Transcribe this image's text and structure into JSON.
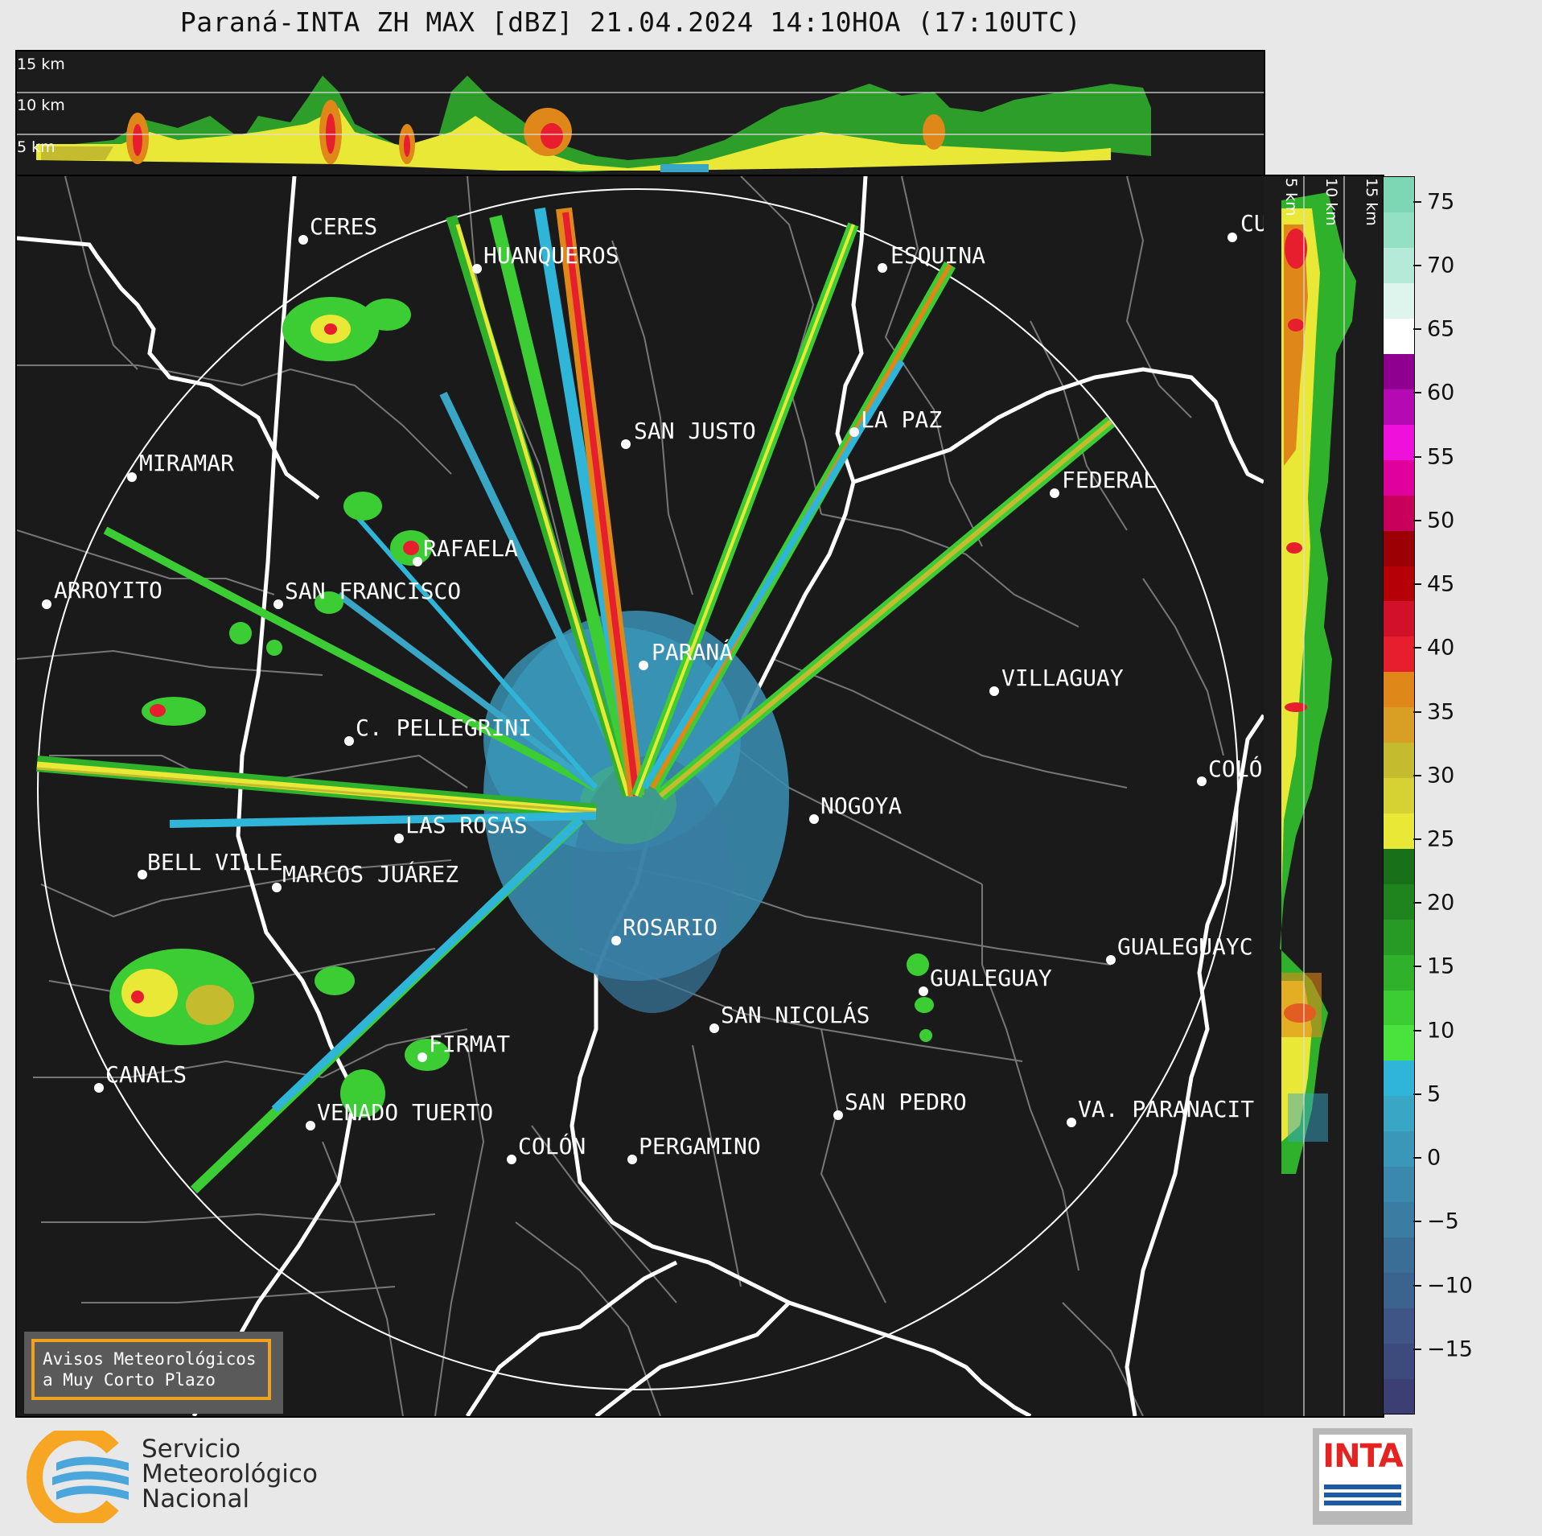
{
  "title": "Paraná-INTA ZH MAX [dBZ] 21.04.2024 14:10HOA (17:10UTC)",
  "top_panel": {
    "altitude_labels": [
      "15 km",
      "10 km",
      "5 km"
    ]
  },
  "side_panel": {
    "altitude_labels": [
      "5 km",
      "10 km",
      "15 km"
    ]
  },
  "cities": [
    {
      "name": "CERES"
    },
    {
      "name": "HUANQUEROS"
    },
    {
      "name": "ESQUINA"
    },
    {
      "name": "CU"
    },
    {
      "name": "SAN JUSTO"
    },
    {
      "name": "LA PAZ"
    },
    {
      "name": "MIRAMAR"
    },
    {
      "name": "FEDERAL"
    },
    {
      "name": "RAFAELA"
    },
    {
      "name": "ARROYITO"
    },
    {
      "name": "SAN FRANCISCO"
    },
    {
      "name": "PARANÁ"
    },
    {
      "name": "VILLAGUAY"
    },
    {
      "name": "C. PELLEGRINI"
    },
    {
      "name": "COLÓ"
    },
    {
      "name": "NOGOYA"
    },
    {
      "name": "LAS ROSAS"
    },
    {
      "name": "BELL VILLE"
    },
    {
      "name": "MARCOS JUÁREZ"
    },
    {
      "name": "ROSARIO"
    },
    {
      "name": "GUALEGUAYC"
    },
    {
      "name": "GUALEGUAY"
    },
    {
      "name": "SAN NICOLÁS"
    },
    {
      "name": "FIRMAT"
    },
    {
      "name": "CANALS"
    },
    {
      "name": "SAN PEDRO"
    },
    {
      "name": "VENADO TUERTO"
    },
    {
      "name": "VA. PARANACIT"
    },
    {
      "name": "COLÓN"
    },
    {
      "name": "PERGAMINO"
    }
  ],
  "colorbar": {
    "ticks": [
      "75",
      "70",
      "65",
      "60",
      "55",
      "50",
      "45",
      "40",
      "35",
      "30",
      "25",
      "20",
      "15",
      "10",
      "5",
      "0",
      "−5",
      "−10",
      "−15"
    ],
    "range_dbz": [
      -20,
      77
    ],
    "colors_low_to_high": [
      "#3b3f73",
      "#3d4a7c",
      "#3f5585",
      "#3c628e",
      "#3a6e97",
      "#3a7ca2",
      "#3a89ad",
      "#3a97b8",
      "#38a6c4",
      "#2fb5d8",
      "#4ae23c",
      "#3ccc34",
      "#30b12c",
      "#279a25",
      "#1f831e",
      "#187018",
      "#e9e836",
      "#d6d233",
      "#c4bb2f",
      "#d89f24",
      "#e08719",
      "#e61e2d",
      "#d1102a",
      "#b60008",
      "#9b0005",
      "#c8005b",
      "#e0009b",
      "#ee11dc",
      "#b509b3",
      "#8f0090",
      "#ffffff",
      "#ddf5ec",
      "#b6ead8",
      "#94e0c4",
      "#7dd7b4"
    ]
  },
  "avisos_box": {
    "line1": "Avisos Meteorológicos",
    "line2": "a Muy Corto Plazo"
  },
  "smn_logo": {
    "line1": "Servicio",
    "line2": "Meteorológico",
    "line3": "Nacional"
  },
  "inta_logo": {
    "text": "INTA"
  }
}
